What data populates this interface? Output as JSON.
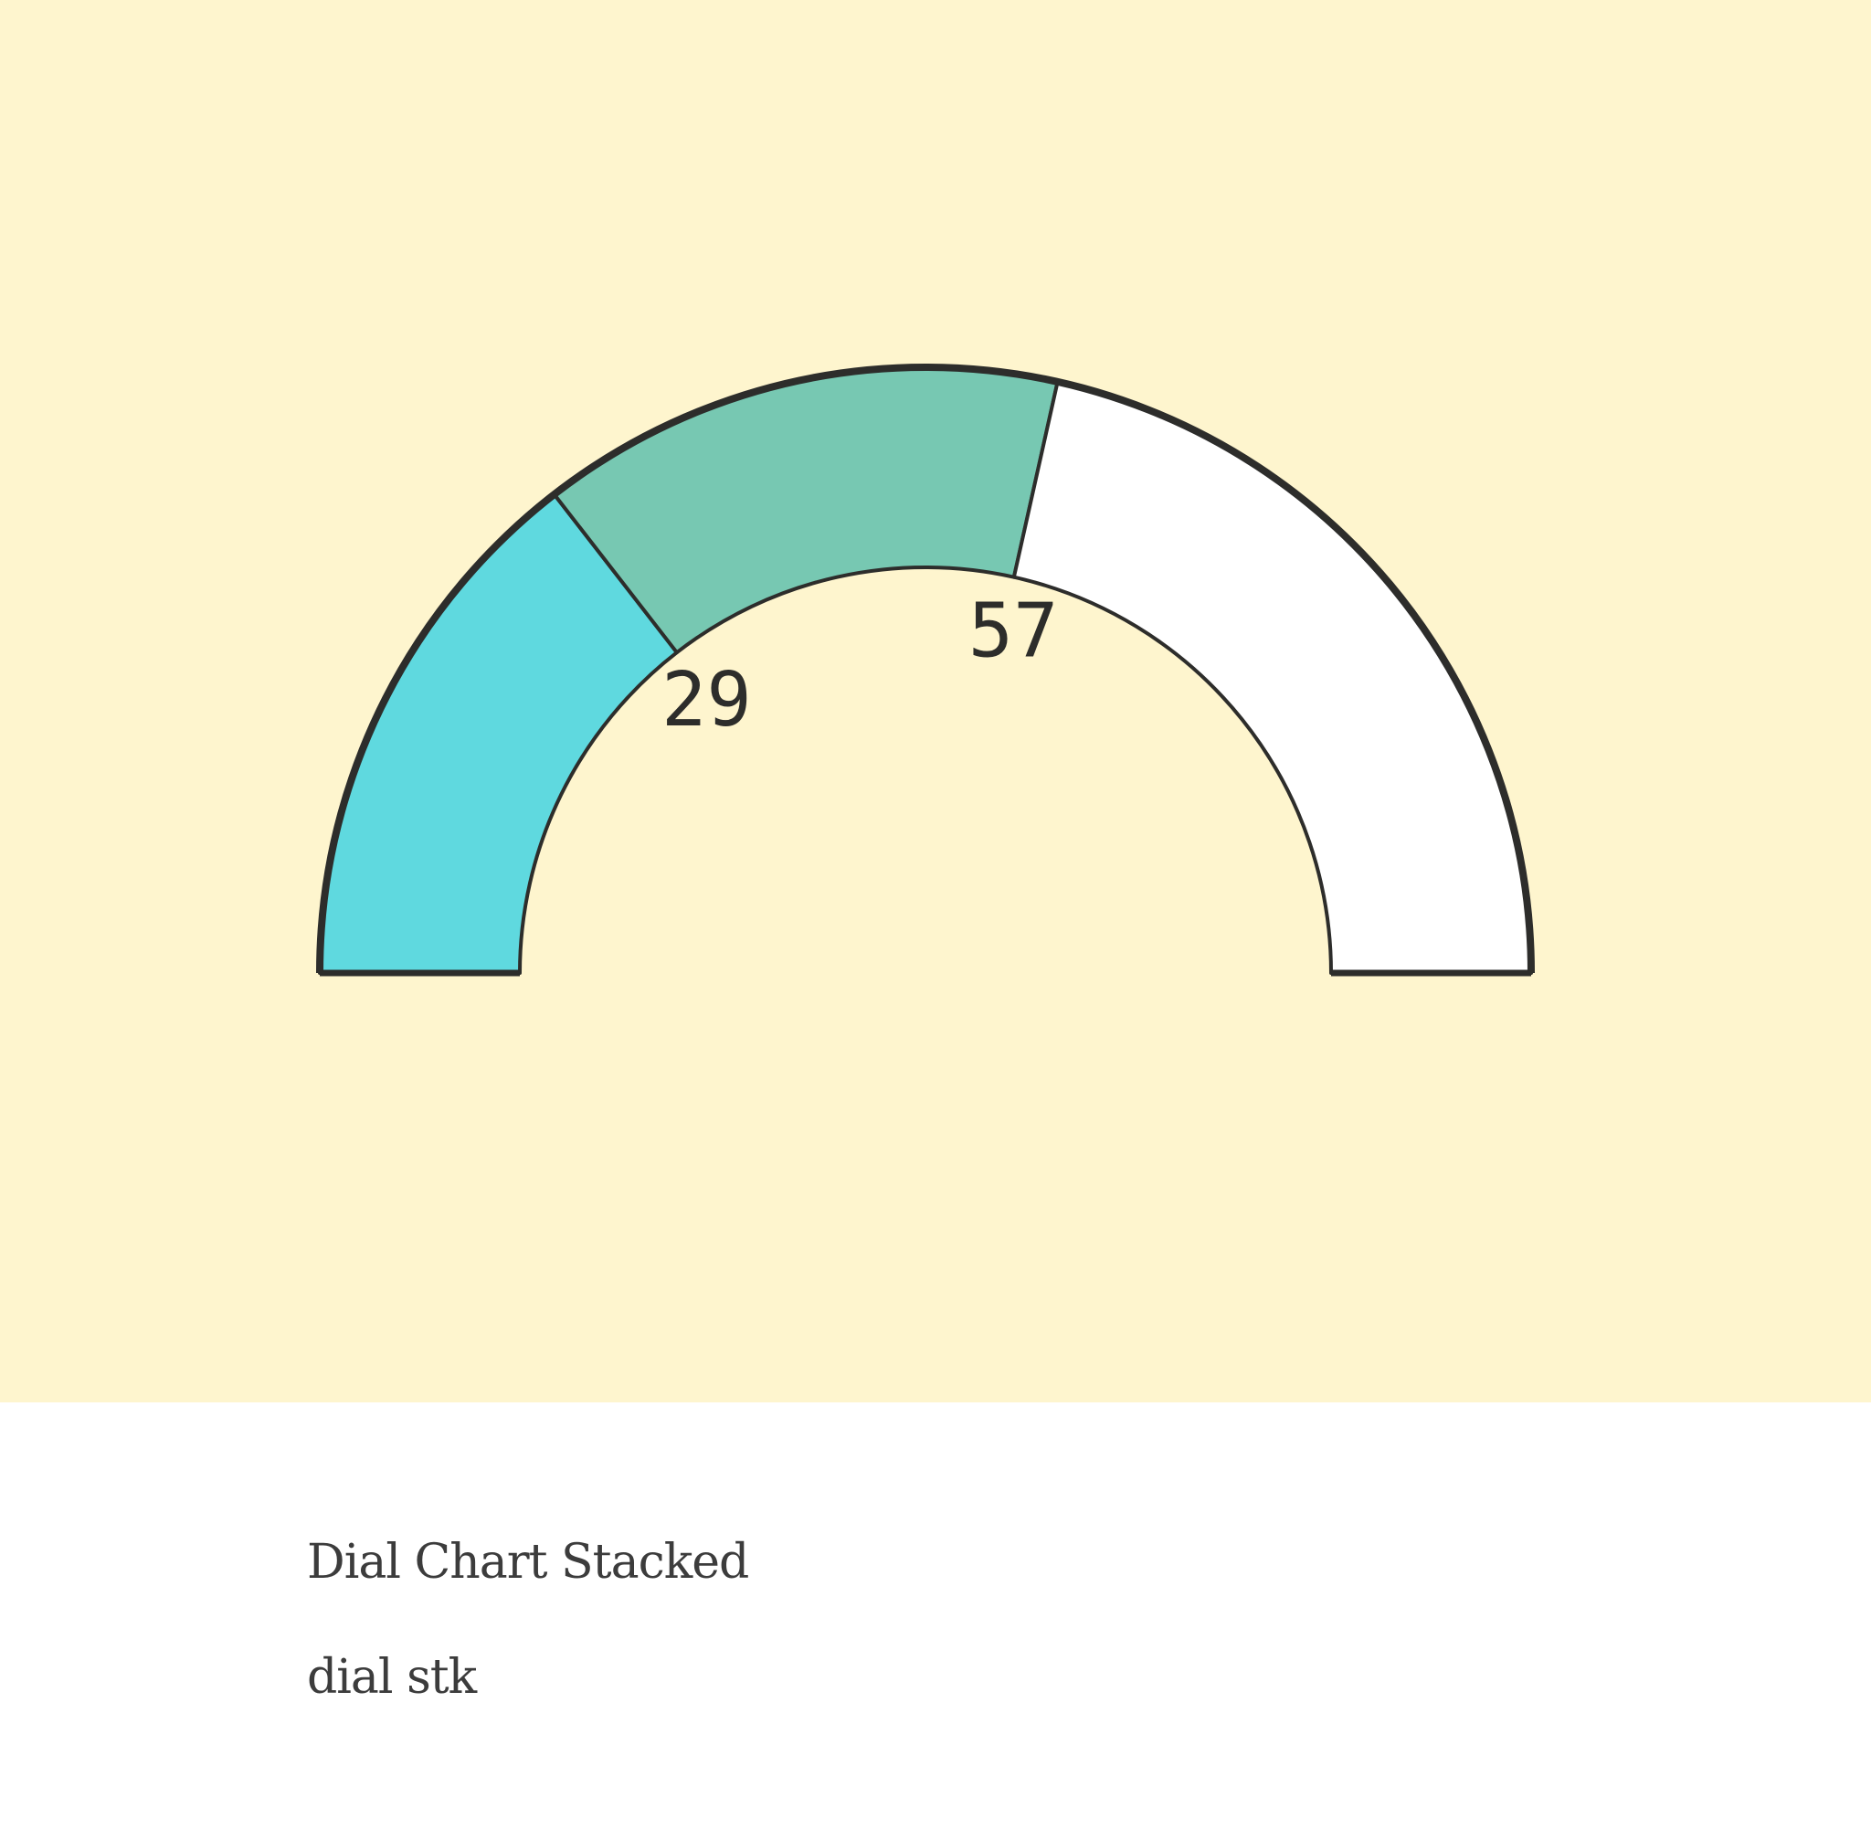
{
  "chart_data": {
    "type": "dial-stacked",
    "min": 0,
    "max": 100,
    "segments": [
      {
        "from": 0,
        "to": 29,
        "color": "#5fd9df"
      },
      {
        "from": 29,
        "to": 57,
        "color": "#77c8b2"
      },
      {
        "from": 57,
        "to": 100,
        "color": "#ffffff"
      }
    ],
    "tick_labels": [
      "29",
      "57"
    ],
    "outline_color": "#2d2d2b",
    "background_color": "#fef5ce"
  },
  "caption": {
    "title": "Dial Chart Stacked",
    "subtitle": "dial stk"
  }
}
